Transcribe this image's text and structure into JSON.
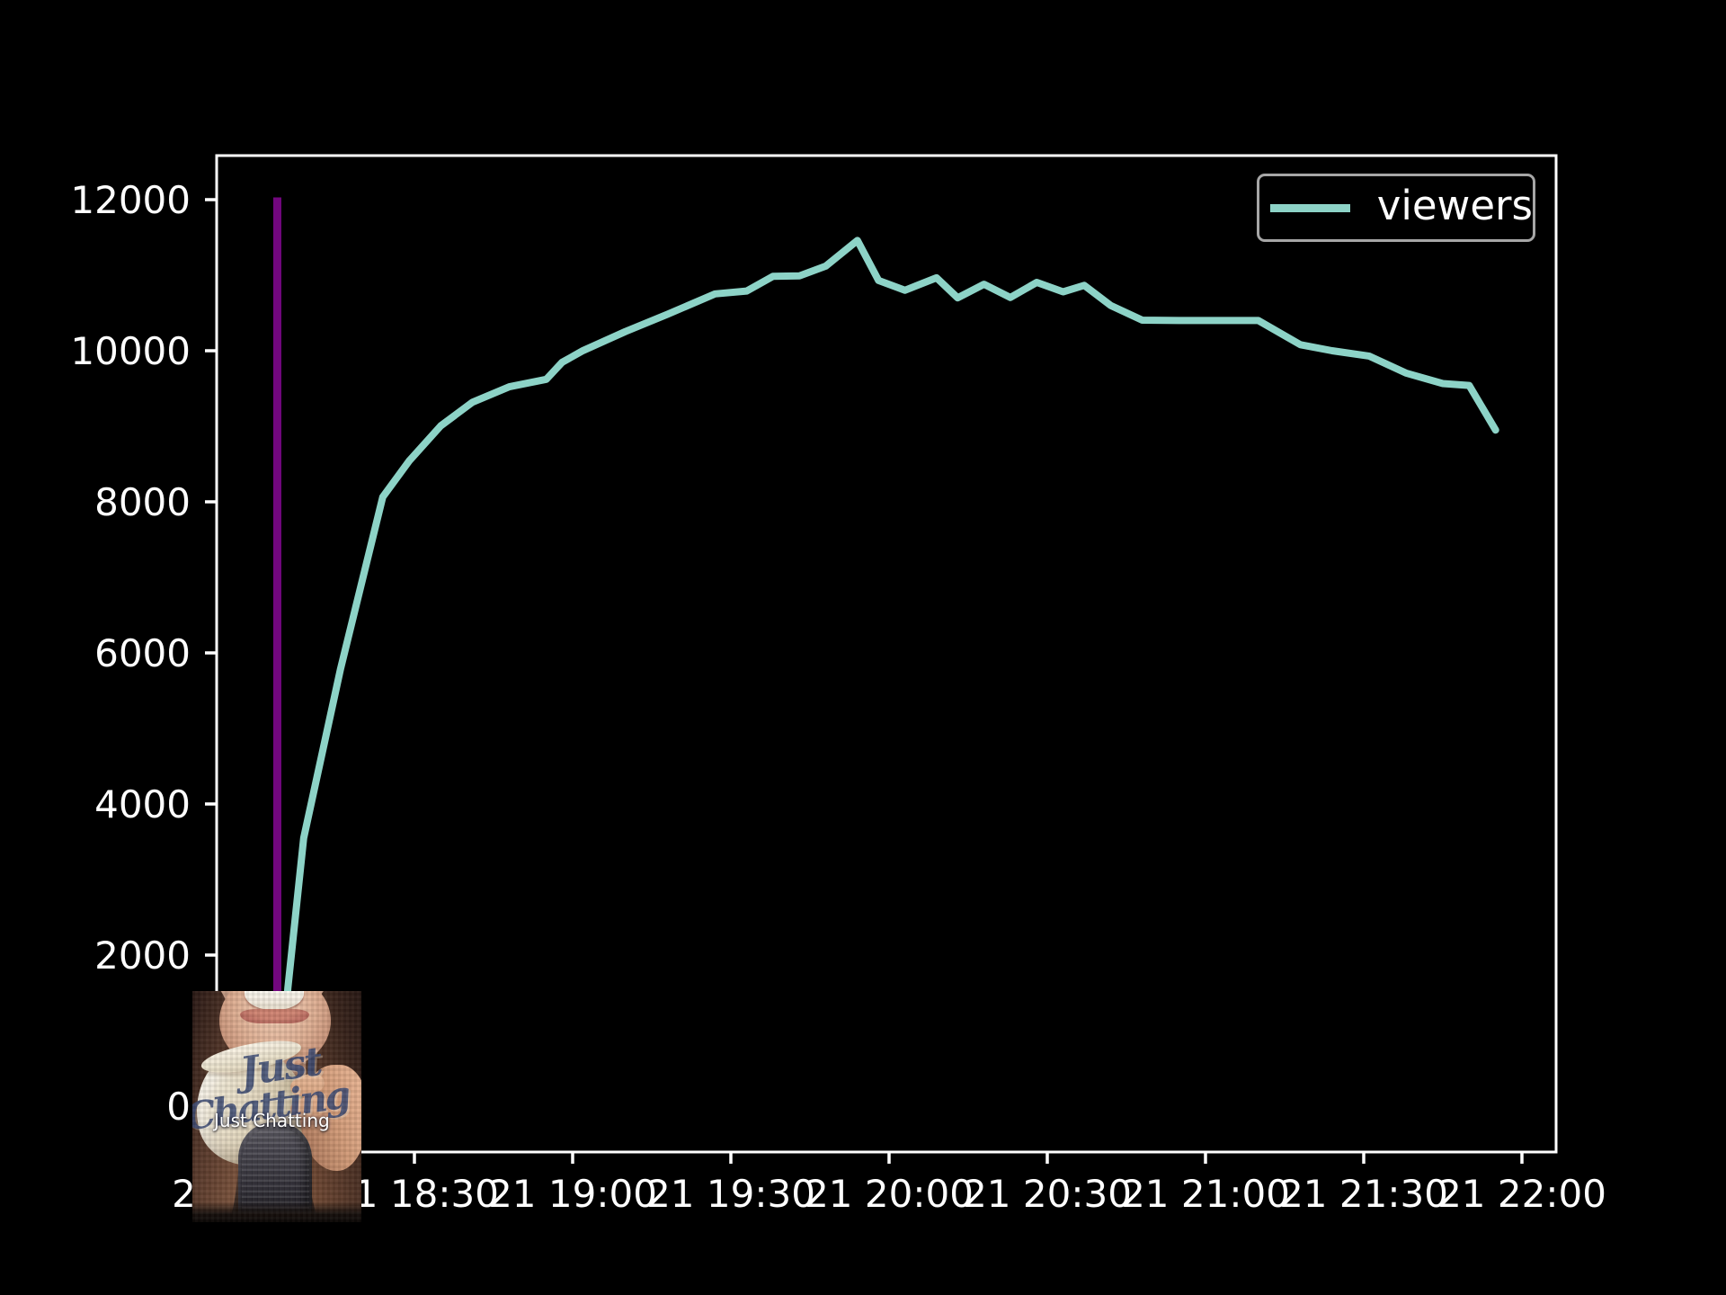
{
  "chart_data": {
    "type": "line",
    "title": "",
    "xlabel": "",
    "ylabel": "",
    "grid": false,
    "background": "#000000",
    "xlim": [
      "17:52",
      "22:06"
    ],
    "ylim": [
      -540,
      12650
    ],
    "x_ticks": [
      {
        "label": "21 18:00",
        "time": "18:00"
      },
      {
        "label": "21 18:30",
        "time": "18:30"
      },
      {
        "label": "21 19:00",
        "time": "19:00"
      },
      {
        "label": "21 19:30",
        "time": "19:30"
      },
      {
        "label": "21 20:00",
        "time": "20:00"
      },
      {
        "label": "21 20:30",
        "time": "20:30"
      },
      {
        "label": "21 21:00",
        "time": "21:00"
      },
      {
        "label": "21 21:30",
        "time": "21:30"
      },
      {
        "label": "21 22:00",
        "time": "22:00"
      }
    ],
    "y_ticks": [
      {
        "label": "0",
        "value": 0
      },
      {
        "label": "2000",
        "value": 2000
      },
      {
        "label": "4000",
        "value": 4000
      },
      {
        "label": "6000",
        "value": 6000
      },
      {
        "label": "8000",
        "value": 8000
      },
      {
        "label": "10000",
        "value": 10000
      },
      {
        "label": "12000",
        "value": 12000
      }
    ],
    "legend": {
      "position": "upper-right",
      "entries": [
        {
          "label": "viewers",
          "color": "#8dd3c7"
        }
      ]
    },
    "series": [
      {
        "name": "viewers",
        "color": "#8dd3c7",
        "x": [
          "18:05",
          "18:06",
          "18:09",
          "18:16",
          "18:24",
          "18:29",
          "18:35",
          "18:41",
          "18:48",
          "18:55",
          "18:58",
          "19:02",
          "19:10",
          "19:18",
          "19:27",
          "19:33",
          "19:38",
          "19:43",
          "19:48",
          "19:54",
          "19:58",
          "20:03",
          "20:09",
          "20:13",
          "20:18",
          "20:23",
          "20:28",
          "20:33",
          "20:37",
          "20:42",
          "20:48",
          "20:55",
          "21:03",
          "21:10",
          "21:18",
          "21:24",
          "21:31",
          "21:38",
          "21:45",
          "21:50",
          "21:55"
        ],
        "y": [
          610,
          1562,
          3548,
          5793,
          8064,
          8541,
          9006,
          9318,
          9523,
          9621,
          9847,
          10002,
          10254,
          10483,
          10752,
          10790,
          10985,
          10990,
          11120,
          11460,
          10930,
          10800,
          10965,
          10700,
          10880,
          10705,
          10905,
          10780,
          10865,
          10600,
          10405,
          10400,
          10400,
          10400,
          10080,
          10000,
          9930,
          9705,
          9565,
          9540,
          8950
        ]
      }
    ],
    "markers": [
      {
        "type": "vline",
        "time": "18:04",
        "value_from": 0,
        "value_to": 12030,
        "color": "#72077e"
      }
    ],
    "category_overlay": {
      "label": "Just Chatting",
      "box_art_text_line1": "Just",
      "box_art_text_line2": "Chatting"
    }
  },
  "colors": {
    "axis": "#ffffff",
    "tick_label": "#ffffff",
    "legend_border": "#a6a6a6",
    "series_teal": "#8dd3c7",
    "marker_purple": "#72077e"
  }
}
